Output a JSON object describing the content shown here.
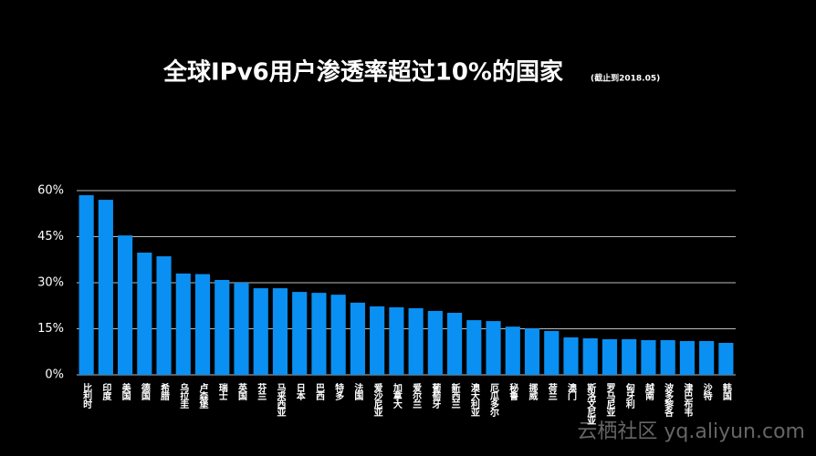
{
  "chart_data": {
    "type": "bar",
    "title": "全球IPv6用户渗透率超过10%的国家",
    "subtitle": "(截止到2018.05)",
    "watermark": "云栖社区 yq.aliyun.com",
    "categories": [
      "比利时",
      "印度",
      "美国",
      "德国",
      "希腊",
      "乌拉圭",
      "卢森堡",
      "瑞士",
      "英国",
      "芬兰",
      "马来西亚",
      "日本",
      "巴西",
      "特多",
      "法国",
      "爱沙尼亚",
      "加拿大",
      "爱尔兰",
      "葡萄牙",
      "新西兰",
      "澳大利亚",
      "厄瓜多尔",
      "秘鲁",
      "挪威",
      "荷兰",
      "澳门",
      "斯洛文尼亚",
      "罗马尼亚",
      "匈牙利",
      "越南",
      "波多黎各",
      "津巴布韦",
      "沙特",
      "韩国"
    ],
    "values": [
      58.5,
      57.0,
      45.4,
      39.8,
      38.6,
      33.0,
      32.8,
      30.9,
      30.0,
      28.2,
      28.2,
      27.0,
      26.7,
      26.1,
      23.5,
      22.3,
      22.0,
      21.7,
      20.8,
      20.2,
      17.8,
      17.5,
      15.7,
      15.1,
      14.3,
      12.2,
      11.9,
      11.6,
      11.6,
      11.3,
      11.3,
      11.0,
      11.0,
      10.4
    ],
    "color": "#0a90f2",
    "ylim": [
      0,
      60
    ],
    "yticks": [
      {
        "value": 0,
        "label": "0%"
      },
      {
        "value": 15,
        "label": "15%"
      },
      {
        "value": 30,
        "label": "30%"
      },
      {
        "value": 45,
        "label": "45%"
      },
      {
        "value": 60,
        "label": "60%"
      }
    ],
    "grid": true
  }
}
